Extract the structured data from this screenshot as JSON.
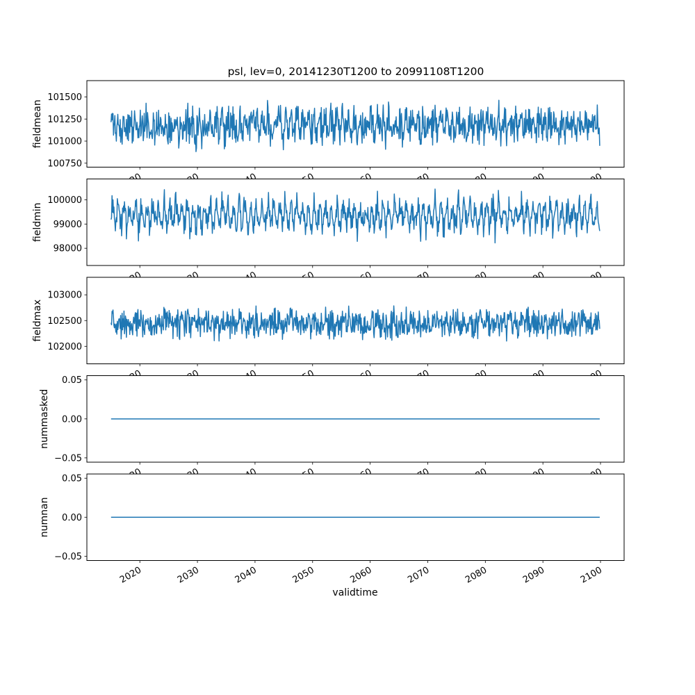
{
  "figure": {
    "title": "psl, lev=0, 20141230T1200 to 20991108T1200",
    "xlabel": "validtime",
    "line_color": "#1f77b4",
    "background_color": "#ffffff",
    "x_ticks": [
      2020,
      2030,
      2040,
      2050,
      2060,
      2070,
      2080,
      2090,
      2100
    ],
    "x_tick_labels": [
      "2020",
      "2030",
      "2040",
      "2050",
      "2060",
      "2070",
      "2080",
      "2090",
      "2100"
    ],
    "xlim": [
      2010.8,
      2104.1
    ],
    "x_start": 2015.0,
    "x_end": 2099.86
  },
  "chart_data": [
    {
      "type": "line",
      "ylabel": "fieldmean",
      "yticks": [
        100750,
        101000,
        101250,
        101500
      ],
      "ytick_labels": [
        "100750",
        "101000",
        "101250",
        "101500"
      ],
      "ylim": [
        100705,
        101685
      ],
      "series": {
        "name": "fieldmean",
        "kind": "noisy",
        "mean": 101180,
        "seasonal_amplitude": 60,
        "seasonal_period_points": 12,
        "noise_amplitude": 240,
        "clamp_min": 100760,
        "clamp_max": 101640,
        "points": 1019,
        "seed": 11
      }
    },
    {
      "type": "line",
      "ylabel": "fieldmin",
      "yticks": [
        98000,
        99000,
        100000
      ],
      "ytick_labels": [
        "98000",
        "99000",
        "100000"
      ],
      "ylim": [
        97288,
        100862
      ],
      "series": {
        "name": "fieldmin",
        "kind": "noisy",
        "mean": 99350,
        "seasonal_amplitude": 450,
        "seasonal_period_points": 12,
        "noise_amplitude": 550,
        "clamp_min": 97500,
        "clamp_max": 100700,
        "points": 1019,
        "seed": 23
      }
    },
    {
      "type": "line",
      "ylabel": "fieldmax",
      "yticks": [
        102000,
        102500,
        103000
      ],
      "ytick_labels": [
        "102000",
        "102500",
        "103000"
      ],
      "ylim": [
        101660,
        103340
      ],
      "series": {
        "name": "fieldmax",
        "kind": "noisy",
        "mean": 102450,
        "seasonal_amplitude": 60,
        "seasonal_period_points": 12,
        "noise_amplitude": 330,
        "clamp_min": 101760,
        "clamp_max": 103300,
        "points": 1019,
        "seed": 37
      }
    },
    {
      "type": "line",
      "ylabel": "nummasked",
      "yticks": [
        -0.05,
        0.0,
        0.05
      ],
      "ytick_labels": [
        "−0.05",
        "0.00",
        "0.05"
      ],
      "ylim": [
        -0.0555,
        0.0555
      ],
      "series": {
        "name": "nummasked",
        "kind": "constant",
        "value": 0
      }
    },
    {
      "type": "line",
      "ylabel": "numnan",
      "yticks": [
        -0.05,
        0.0,
        0.05
      ],
      "ytick_labels": [
        "−0.05",
        "0.00",
        "0.05"
      ],
      "ylim": [
        -0.0555,
        0.0555
      ],
      "series": {
        "name": "numnan",
        "kind": "constant",
        "value": 0
      }
    }
  ]
}
